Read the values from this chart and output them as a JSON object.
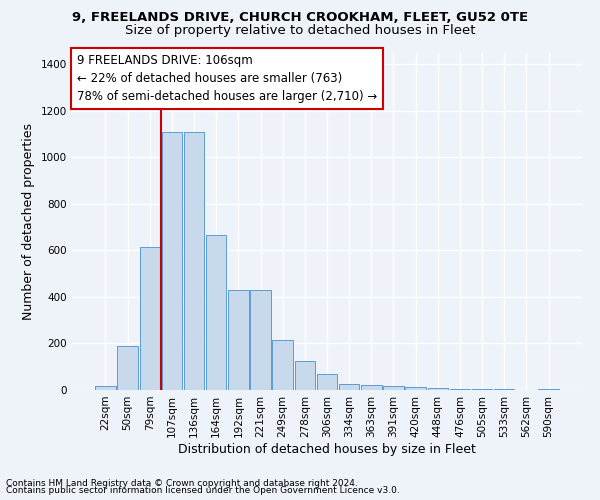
{
  "title_line1": "9, FREELANDS DRIVE, CHURCH CROOKHAM, FLEET, GU52 0TE",
  "title_line2": "Size of property relative to detached houses in Fleet",
  "xlabel": "Distribution of detached houses by size in Fleet",
  "ylabel": "Number of detached properties",
  "bar_color": "#c9d9ec",
  "bar_edge_color": "#5b9bd5",
  "categories": [
    "22sqm",
    "50sqm",
    "79sqm",
    "107sqm",
    "136sqm",
    "164sqm",
    "192sqm",
    "221sqm",
    "249sqm",
    "278sqm",
    "306sqm",
    "334sqm",
    "363sqm",
    "391sqm",
    "420sqm",
    "448sqm",
    "476sqm",
    "505sqm",
    "533sqm",
    "562sqm",
    "590sqm"
  ],
  "values": [
    18,
    190,
    615,
    1110,
    1110,
    665,
    430,
    430,
    215,
    125,
    70,
    25,
    22,
    18,
    15,
    8,
    5,
    5,
    3,
    2,
    5
  ],
  "ylim": [
    0,
    1450
  ],
  "yticks": [
    0,
    200,
    400,
    600,
    800,
    1000,
    1200,
    1400
  ],
  "vline_index": 3,
  "annotation_text": "9 FREELANDS DRIVE: 106sqm\n← 22% of detached houses are smaller (763)\n78% of semi-detached houses are larger (2,710) →",
  "annotation_box_color": "#ffffff",
  "annotation_box_edge_color": "#cc0000",
  "vline_color": "#cc0000",
  "footer_line1": "Contains HM Land Registry data © Crown copyright and database right 2024.",
  "footer_line2": "Contains public sector information licensed under the Open Government Licence v3.0.",
  "background_color": "#eef2f9",
  "grid_color": "#ffffff",
  "title_fontsize": 9.5,
  "subtitle_fontsize": 9.5,
  "axis_label_fontsize": 9,
  "tick_fontsize": 7.5,
  "annotation_fontsize": 8.5,
  "footer_fontsize": 6.5
}
